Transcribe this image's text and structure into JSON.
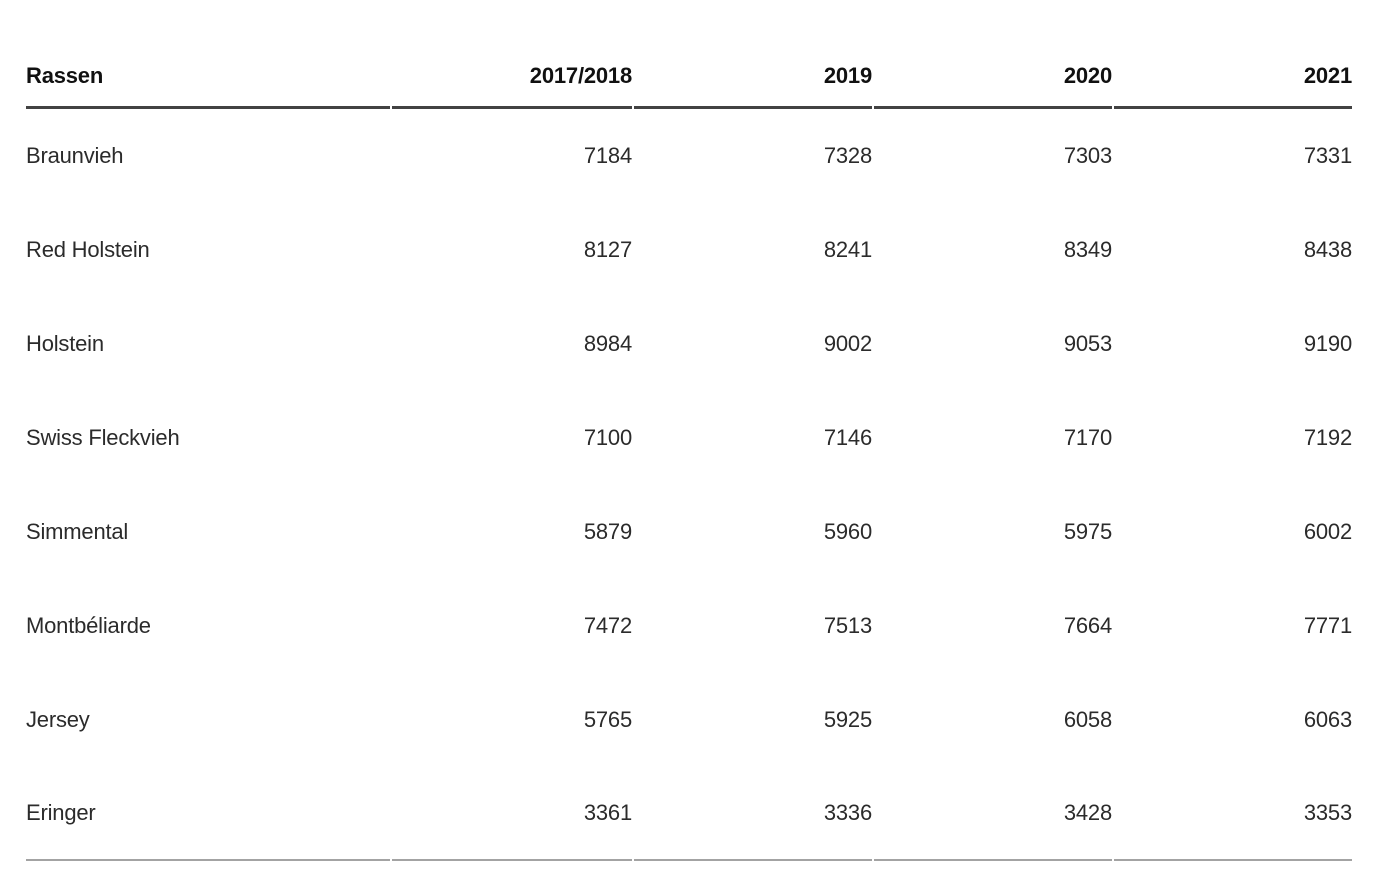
{
  "chart_data": {
    "type": "table",
    "title": "",
    "categories": [
      "2017/2018",
      "2019",
      "2020",
      "2021"
    ],
    "series": [
      {
        "name": "Braunvieh",
        "values": [
          7184,
          7328,
          7303,
          7331
        ]
      },
      {
        "name": "Red Holstein",
        "values": [
          8127,
          8241,
          8349,
          8438
        ]
      },
      {
        "name": "Holstein",
        "values": [
          8984,
          9002,
          9053,
          9190
        ]
      },
      {
        "name": "Swiss Fleckvieh",
        "values": [
          7100,
          7146,
          7170,
          7192
        ]
      },
      {
        "name": "Simmental",
        "values": [
          5879,
          5960,
          5975,
          6002
        ]
      },
      {
        "name": "Montbéliarde",
        "values": [
          7472,
          7513,
          7664,
          7771
        ]
      },
      {
        "name": "Jersey",
        "values": [
          5765,
          5925,
          6058,
          6063
        ]
      },
      {
        "name": "Eringer",
        "values": [
          3361,
          3336,
          3428,
          3353
        ]
      }
    ],
    "layout": {
      "header_rule_color": "#424242",
      "bottom_rule_color": "#a3a3a3",
      "numeric_alignment": "right",
      "grid": "off"
    }
  },
  "table": {
    "columns": [
      "Rassen",
      "2017/2018",
      "2019",
      "2020",
      "2021"
    ],
    "rows": [
      {
        "label": "Braunvieh",
        "values": [
          "7184",
          "7328",
          "7303",
          "7331"
        ]
      },
      {
        "label": "Red Holstein",
        "values": [
          "8127",
          "8241",
          "8349",
          "8438"
        ]
      },
      {
        "label": "Holstein",
        "values": [
          "8984",
          "9002",
          "9053",
          "9190"
        ]
      },
      {
        "label": "Swiss Fleckvieh",
        "values": [
          "7100",
          "7146",
          "7170",
          "7192"
        ]
      },
      {
        "label": "Simmental",
        "values": [
          "5879",
          "5960",
          "5975",
          "6002"
        ]
      },
      {
        "label": "Montbéliarde",
        "values": [
          "7472",
          "7513",
          "7664",
          "7771"
        ]
      },
      {
        "label": "Jersey",
        "values": [
          "5765",
          "5925",
          "6058",
          "6063"
        ]
      },
      {
        "label": "Eringer",
        "values": [
          "3361",
          "3336",
          "3428",
          "3353"
        ]
      }
    ]
  }
}
